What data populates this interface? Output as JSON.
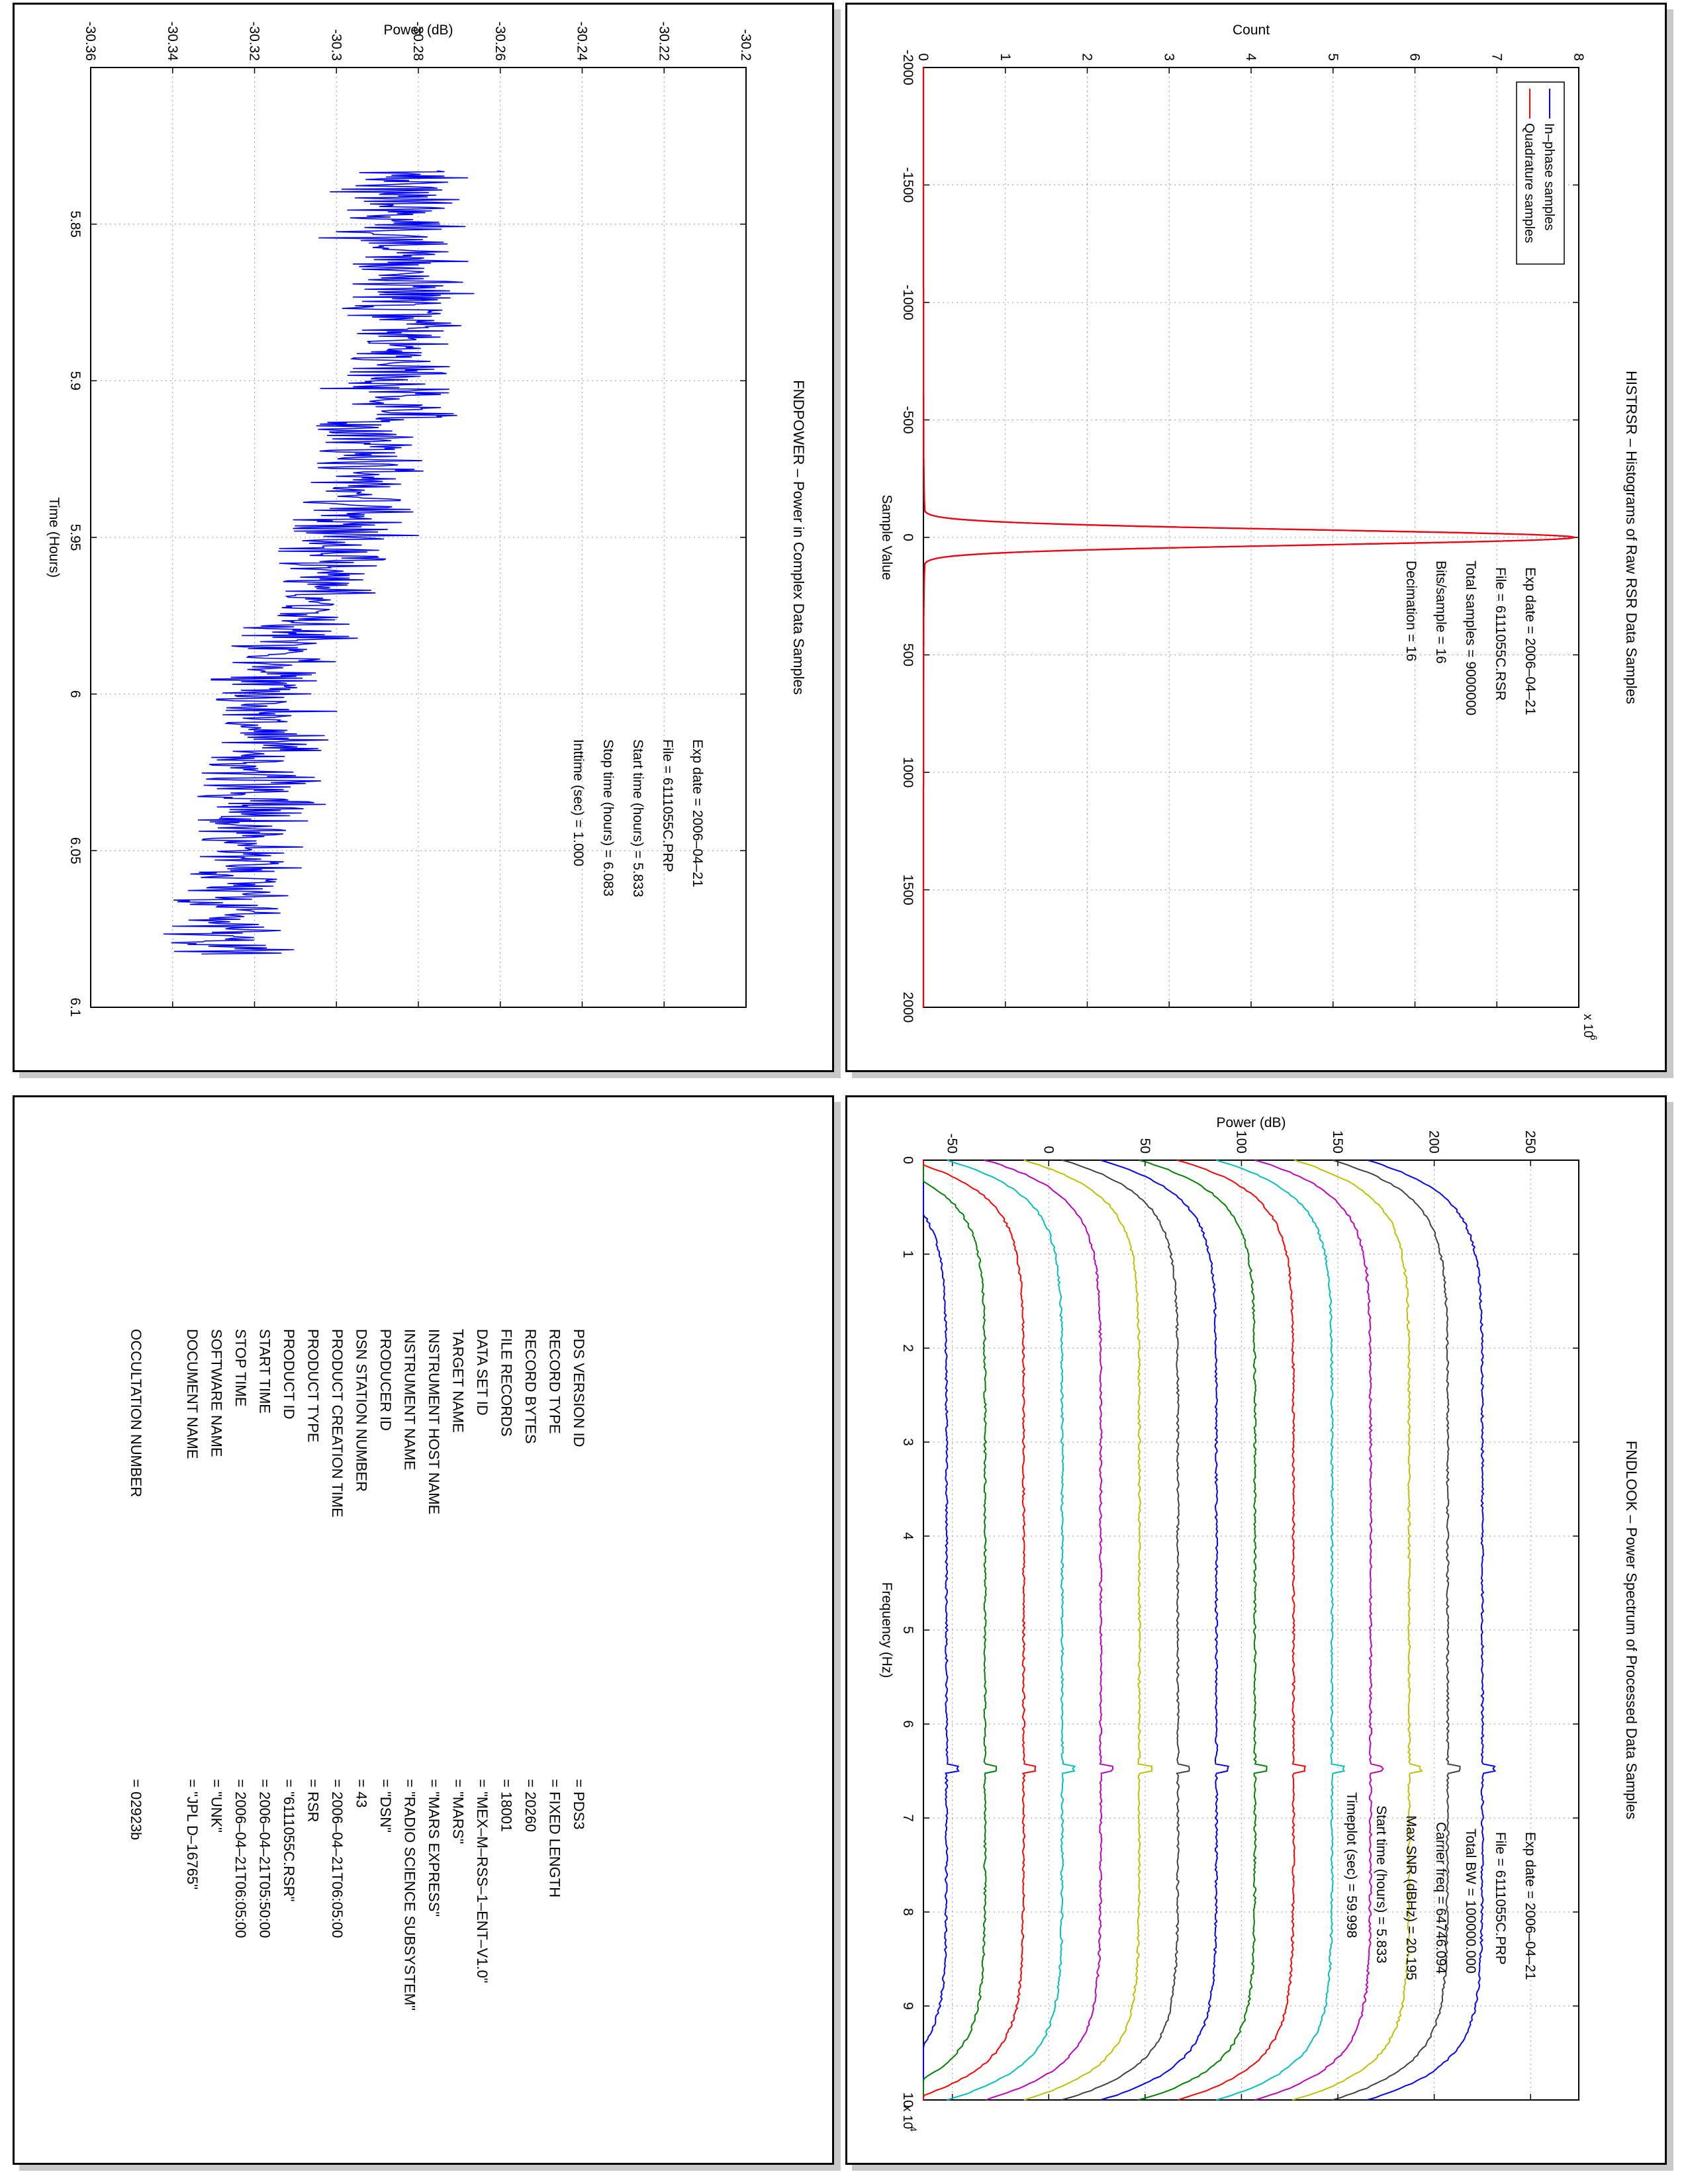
{
  "panels": {
    "histogram": {
      "title": "HISTRSR – Histograms of Raw RSR Data Samples",
      "xlabel": "Sample Value",
      "ylabel": "Count",
      "exponent_label": "x 10",
      "exponent_power": "6",
      "info_lines": [
        "Exp date = 2006–04–21",
        "File = 6111055C.RSR",
        "Total samples =  9000000",
        "Bits/sample  =      16",
        "Decimation   =      16"
      ],
      "legend": [
        "In–phase samples",
        "Quadrature samples"
      ]
    },
    "power": {
      "title": "FNDPOWER – Power in Complex Data Samples",
      "xlabel": "Time (Hours)",
      "ylabel": "Power (dB)",
      "info_lines": [
        "Exp date = 2006–04–21",
        "File = 6111055C.PRP",
        "Start time (hours) =  5.833",
        "Stop time (hours) =  6.083",
        "Inttime (sec) =    1.000"
      ]
    },
    "spectrum": {
      "title": "FNDLOOK – Power Spectrum of Processed Data Samples",
      "xlabel": "Frequency (Hz)",
      "ylabel": "Power (dB)",
      "exponent_label": "x 10",
      "exponent_power": "4",
      "info_lines": [
        "Exp date = 2006–04–21",
        "File = 6111055C.PRP",
        "Total BW =    100000.000",
        "Carrier freq =   64746.094",
        "Max SNR (dBHz) =    20.195",
        "Start time (hours) =    5.833",
        "Timeplot (sec) =    59.998"
      ]
    },
    "label": {
      "rows": [
        {
          "key": "PDS VERSION ID",
          "value": "= PDS3"
        },
        {
          "key": "RECORD TYPE",
          "value": "= FIXED LENGTH"
        },
        {
          "key": "RECORD BYTES",
          "value": "= 20260"
        },
        {
          "key": "FILE RECORDS",
          "value": "= 18001"
        },
        {
          "key": "DATA SET ID",
          "value": "= \"MEX–M–RSS–1–ENT–V1.0\""
        },
        {
          "key": "TARGET NAME",
          "value": "= \"MARS\""
        },
        {
          "key": "INSTRUMENT HOST NAME",
          "value": "= \"MARS EXPRESS\""
        },
        {
          "key": "INSTRUMENT NAME",
          "value": "= \"RADIO SCIENCE SUBSYSTEM\""
        },
        {
          "key": "PRODUCER ID",
          "value": "= \"DSN\""
        },
        {
          "key": "DSN STATION NUMBER",
          "value": "= 43"
        },
        {
          "key": "PRODUCT CREATION TIME",
          "value": "= 2006–04–21T06:05:00"
        },
        {
          "key": "PRODUCT TYPE",
          "value": "= RSR"
        },
        {
          "key": "PRODUCT ID",
          "value": "= \"6111055C.RSR\""
        },
        {
          "key": "START TIME",
          "value": "= 2006–04–21T05:50:00"
        },
        {
          "key": "STOP TIME",
          "value": "= 2006–04–21T06:05:00"
        },
        {
          "key": "SOFTWARE NAME",
          "value": "= \"UNK\""
        },
        {
          "key": "DOCUMENT NAME",
          "value": "= \"JPL D–16765\""
        }
      ],
      "occultation_key": "OCCULTATION NUMBER",
      "occultation_value": "= 02923b"
    }
  },
  "colors": {
    "inphase": "#0000ff",
    "quadrature": "#ff0000",
    "power_line": "#0000ff",
    "spectrum_series": [
      "#0000ff",
      "#008000",
      "#ff0000",
      "#00bfbf",
      "#bf00bf",
      "#bfbf00",
      "#404040",
      "#0000ff",
      "#008000",
      "#ff0000",
      "#00bfbf",
      "#bf00bf",
      "#bfbf00",
      "#404040",
      "#0000ff"
    ]
  },
  "chart_data": [
    {
      "type": "line",
      "name": "HISTRSR",
      "title": "HISTRSR – Histograms of Raw RSR Data Samples",
      "xlabel": "Sample Value",
      "ylabel": "Count",
      "xlim": [
        -2000,
        2000
      ],
      "ylim": [
        0,
        8000000
      ],
      "xticks": [
        "-2000",
        "-1500",
        "-1000",
        "-500",
        "0",
        "500",
        "1000",
        "1500",
        "2000"
      ],
      "yticks": [
        "0",
        "1",
        "2",
        "3",
        "4",
        "5",
        "6",
        "7",
        "8"
      ],
      "grid": true,
      "legend_position": "top-left",
      "series": [
        {
          "name": "In–phase samples",
          "shape": "gaussian",
          "center": 0,
          "peak": 7950000,
          "sigma": 32
        },
        {
          "name": "Quadrature samples",
          "shape": "gaussian",
          "center": 0,
          "peak": 7950000,
          "sigma": 32
        }
      ]
    },
    {
      "type": "line",
      "name": "FNDPOWER",
      "title": "FNDPOWER – Power in Complex Data Samples",
      "xlabel": "Time (Hours)",
      "ylabel": "Power (dB)",
      "xlim": [
        5.8,
        6.1
      ],
      "ylim": [
        -30.36,
        -30.2
      ],
      "xticks": [
        "5.85",
        "5.9",
        "5.95",
        "6",
        "6.05",
        "6.1"
      ],
      "yticks": [
        "-30.36",
        "-30.34",
        "-30.32",
        "-30.3",
        "-30.28",
        "-30.26",
        "-30.24",
        "-30.22",
        "-30.2"
      ],
      "grid": true,
      "series": [
        {
          "name": "",
          "trend": [
            [
              5.833,
              -30.283
            ],
            [
              5.9,
              -30.285
            ],
            [
              5.95,
              -30.297
            ],
            [
              6.0,
              -30.317
            ],
            [
              6.083,
              -30.325
            ]
          ],
          "noise_amplitude": 0.022,
          "x_range": [
            5.833,
            6.083
          ]
        }
      ]
    },
    {
      "type": "line",
      "name": "FNDLOOK",
      "title": "FNDLOOK – Power Spectrum of Processed Data Samples",
      "xlabel": "Frequency (Hz)",
      "ylabel": "Power (dB)",
      "xlim": [
        0,
        100000
      ],
      "ylim": [
        -65,
        275
      ],
      "xticks": [
        "0",
        "1",
        "2",
        "3",
        "4",
        "5",
        "6",
        "7",
        "8",
        "9",
        "10"
      ],
      "yticks": [
        "-50",
        "0",
        "50",
        "100",
        "150",
        "200",
        "250"
      ],
      "grid": true,
      "carrier_freq": 64746.094,
      "series_levels": [
        -53,
        -33,
        -13,
        7,
        27,
        47,
        67,
        87,
        107,
        127,
        147,
        167,
        187,
        207,
        225
      ]
    }
  ]
}
